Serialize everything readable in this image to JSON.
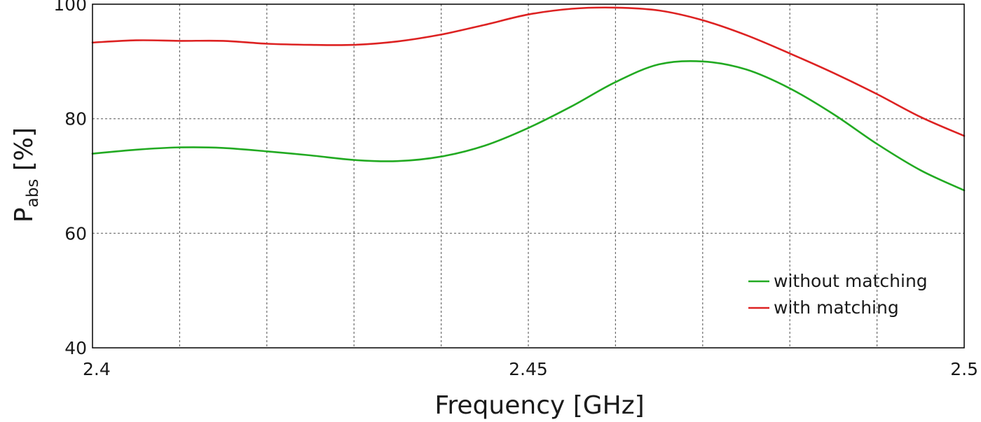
{
  "chart_data": {
    "type": "line",
    "title": "",
    "xlabel": "Frequency [GHz]",
    "ylabel": {
      "main": "P",
      "sub": "abs",
      "unit": " [%]"
    },
    "xlim": [
      2.4,
      2.5
    ],
    "ylim": [
      40,
      100
    ],
    "x_ticks": [
      2.4,
      2.45,
      2.5
    ],
    "x_tick_labels": [
      "2.4",
      "2.45",
      "2.5"
    ],
    "x_grid": [
      2.41,
      2.42,
      2.43,
      2.44,
      2.45,
      2.46,
      2.47,
      2.48,
      2.49
    ],
    "y_ticks": [
      40,
      60,
      80,
      100
    ],
    "y_tick_labels": [
      "40",
      "60",
      "80",
      "100"
    ],
    "grid": true,
    "legend_position": "bottom-right",
    "series": [
      {
        "name": "without matching",
        "color": "#22aa22",
        "x": [
          2.4,
          2.405,
          2.41,
          2.415,
          2.42,
          2.425,
          2.43,
          2.435,
          2.44,
          2.445,
          2.45,
          2.455,
          2.46,
          2.465,
          2.47,
          2.475,
          2.48,
          2.485,
          2.49,
          2.495,
          2.5
        ],
        "y": [
          73.9,
          74.6,
          75.0,
          74.9,
          74.3,
          73.6,
          72.8,
          72.6,
          73.4,
          75.3,
          78.4,
          82.2,
          86.4,
          89.5,
          90.0,
          88.6,
          85.3,
          80.8,
          75.6,
          71.0,
          67.5
        ]
      },
      {
        "name": "with matching",
        "color": "#dd2222",
        "x": [
          2.4,
          2.405,
          2.41,
          2.415,
          2.42,
          2.425,
          2.43,
          2.435,
          2.44,
          2.445,
          2.45,
          2.455,
          2.46,
          2.465,
          2.47,
          2.475,
          2.48,
          2.485,
          2.49,
          2.495,
          2.5
        ],
        "y": [
          93.3,
          93.7,
          93.6,
          93.6,
          93.1,
          92.9,
          92.9,
          93.5,
          94.7,
          96.4,
          98.2,
          99.2,
          99.4,
          98.9,
          97.2,
          94.6,
          91.4,
          88.0,
          84.3,
          80.3,
          77.0
        ]
      }
    ]
  }
}
